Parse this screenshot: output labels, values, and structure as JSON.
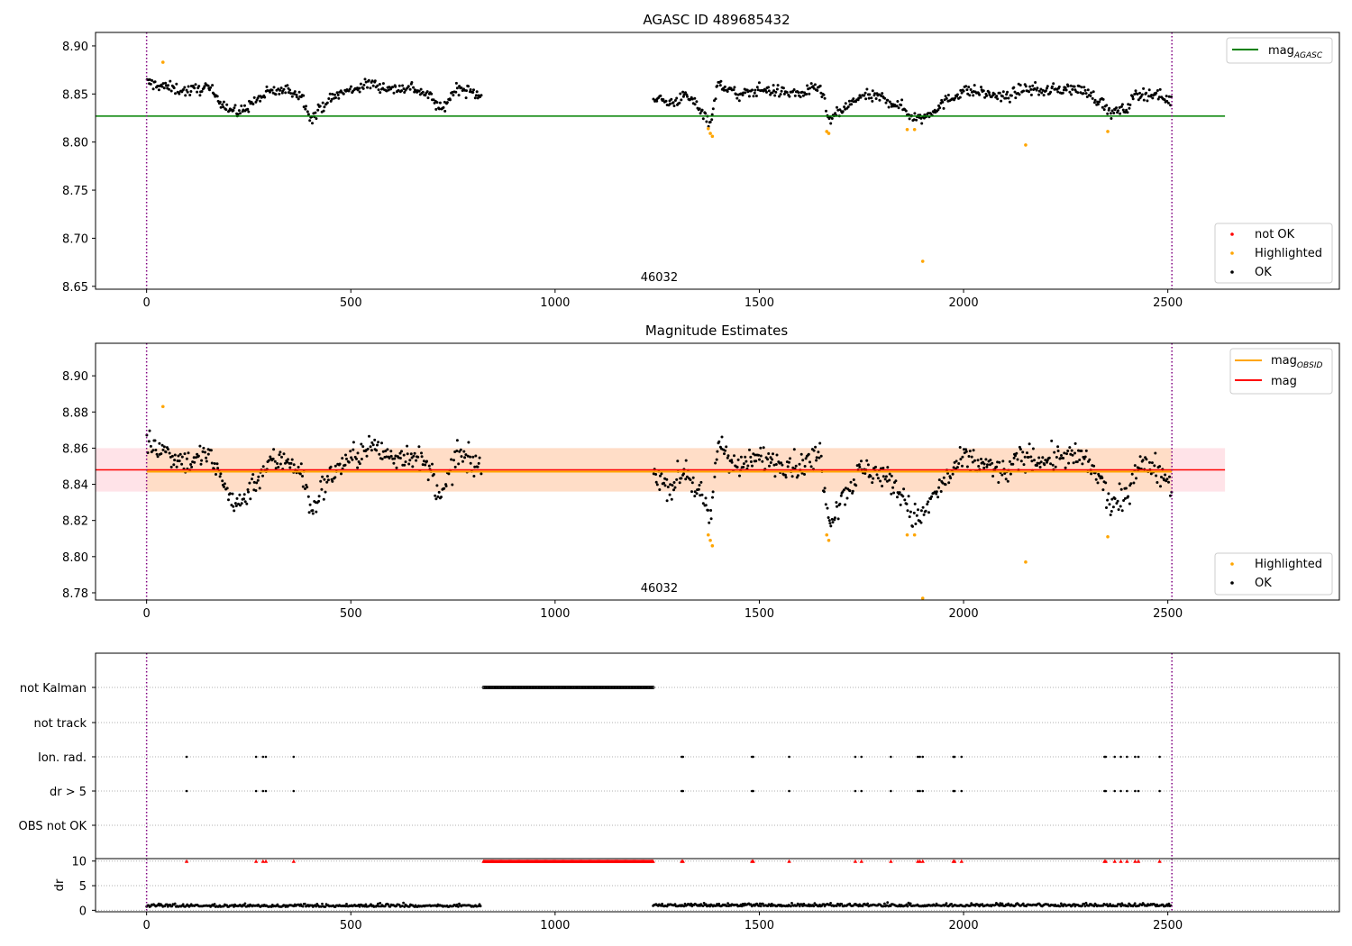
{
  "colors": {
    "ok": "#000000",
    "highlighted": "#ffa500",
    "not_ok": "#ff0000",
    "mag_agasc": "#008000",
    "mag_obsid": "#ffa500",
    "mag": "#ff0000",
    "obsid_vline": "#800080",
    "band_mag": "#ffc0cb",
    "band_obsid": "#ffdab9",
    "flag_grid": "#b0b0b0"
  },
  "chart_data": [
    {
      "type": "scatter",
      "title": "AGASC ID 489685432",
      "xlabel": "",
      "ylabel": "",
      "xlim": [
        -125,
        2920
      ],
      "ylim": [
        8.647,
        8.914
      ],
      "xticks": [
        0,
        500,
        1000,
        1500,
        2000,
        2500
      ],
      "yticks": [
        8.65,
        8.7,
        8.75,
        8.8,
        8.85,
        8.9
      ],
      "ytick_labels": [
        "8.65",
        "8.70",
        "8.75",
        "8.80",
        "8.85",
        "8.90"
      ],
      "mag_agasc": 8.827,
      "mag_agasc_xrange": [
        -125,
        2640
      ],
      "obsid_boundaries": [
        0,
        2510
      ],
      "obsid_labels": [
        {
          "x": 1255,
          "text": "46032"
        }
      ],
      "legend_lines": [
        {
          "name": "mag",
          "sub": "AGASC",
          "color": "#008000"
        }
      ],
      "legend_points": [
        {
          "name": "not OK",
          "color": "#ff0000"
        },
        {
          "name": "Highlighted",
          "color": "#ffa500"
        },
        {
          "name": "OK",
          "color": "#000000"
        }
      ],
      "highlighted_points": [
        [
          40,
          8.883
        ],
        [
          1375,
          8.814
        ],
        [
          1380,
          8.809
        ],
        [
          1385,
          8.806
        ],
        [
          1665,
          8.811
        ],
        [
          1670,
          8.809
        ],
        [
          1862,
          8.813
        ],
        [
          1880,
          8.813
        ],
        [
          1900,
          8.676
        ],
        [
          2152,
          8.797
        ],
        [
          2353,
          8.811
        ]
      ],
      "ok_segments": [
        {
          "x0": 0,
          "x1": 820,
          "y": [
            [
              0,
              8.862
            ],
            [
              50,
              8.857
            ],
            [
              100,
              8.853
            ],
            [
              150,
              8.857
            ],
            [
              200,
              8.835
            ],
            [
              225,
              8.83
            ],
            [
              250,
              8.838
            ],
            [
              300,
              8.852
            ],
            [
              350,
              8.854
            ],
            [
              380,
              8.848
            ],
            [
              405,
              8.824
            ],
            [
              430,
              8.838
            ],
            [
              470,
              8.85
            ],
            [
              550,
              8.861
            ],
            [
              600,
              8.855
            ],
            [
              650,
              8.857
            ],
            [
              700,
              8.846
            ],
            [
              720,
              8.832
            ],
            [
              760,
              8.857
            ],
            [
              820,
              8.848
            ]
          ],
          "noise": 0.0055,
          "count": 330
        },
        {
          "x0": 1240,
          "x1": 2510,
          "y": [
            [
              1240,
              8.848
            ],
            [
              1280,
              8.84
            ],
            [
              1320,
              8.848
            ],
            [
              1350,
              8.838
            ],
            [
              1380,
              8.82
            ],
            [
              1400,
              8.862
            ],
            [
              1450,
              8.848
            ],
            [
              1500,
              8.855
            ],
            [
              1600,
              8.85
            ],
            [
              1650,
              8.857
            ],
            [
              1670,
              8.822
            ],
            [
              1700,
              8.832
            ],
            [
              1750,
              8.848
            ],
            [
              1800,
              8.846
            ],
            [
              1850,
              8.836
            ],
            [
              1875,
              8.826
            ],
            [
              1900,
              8.825
            ],
            [
              1925,
              8.833
            ],
            [
              1960,
              8.843
            ],
            [
              2000,
              8.854
            ],
            [
              2050,
              8.851
            ],
            [
              2100,
              8.846
            ],
            [
              2150,
              8.856
            ],
            [
              2200,
              8.853
            ],
            [
              2250,
              8.856
            ],
            [
              2300,
              8.853
            ],
            [
              2340,
              8.84
            ],
            [
              2360,
              8.83
            ],
            [
              2400,
              8.834
            ],
            [
              2420,
              8.85
            ],
            [
              2470,
              8.85
            ],
            [
              2510,
              8.842
            ]
          ],
          "noise": 0.0055,
          "count": 520
        }
      ]
    },
    {
      "type": "scatter",
      "title": "Magnitude Estimates",
      "xlabel": "",
      "ylabel": "",
      "xlim": [
        -125,
        2920
      ],
      "ylim": [
        8.776,
        8.918
      ],
      "xticks": [
        0,
        500,
        1000,
        1500,
        2000,
        2500
      ],
      "yticks": [
        8.78,
        8.8,
        8.82,
        8.84,
        8.86,
        8.88,
        8.9
      ],
      "ytick_labels": [
        "8.78",
        "8.80",
        "8.82",
        "8.84",
        "8.86",
        "8.88",
        "8.90"
      ],
      "mag": 8.848,
      "mag_band": [
        8.836,
        8.86
      ],
      "mag_xrange": [
        -125,
        2640
      ],
      "mag_obsid": 8.847,
      "mag_obsid_band": [
        8.836,
        8.86
      ],
      "mag_obsid_xrange": [
        0,
        2510
      ],
      "obsid_boundaries": [
        0,
        2510
      ],
      "obsid_labels": [
        {
          "x": 1255,
          "text": "46032"
        }
      ],
      "legend_lines": [
        {
          "name": "mag",
          "sub": "OBSID",
          "color": "#ffa500"
        },
        {
          "name": "mag",
          "sub": "",
          "color": "#ff0000"
        }
      ],
      "legend_points": [
        {
          "name": "Highlighted",
          "color": "#ffa500"
        },
        {
          "name": "OK",
          "color": "#000000"
        }
      ],
      "highlighted_points": [
        [
          40,
          8.883
        ],
        [
          1375,
          8.812
        ],
        [
          1380,
          8.809
        ],
        [
          1385,
          8.806
        ],
        [
          1665,
          8.812
        ],
        [
          1670,
          8.809
        ],
        [
          1862,
          8.812
        ],
        [
          1880,
          8.812
        ],
        [
          1900,
          8.777
        ],
        [
          2152,
          8.797
        ],
        [
          2353,
          8.811
        ]
      ],
      "ok_segments": [
        {
          "x0": 0,
          "x1": 820,
          "y": [
            [
              0,
              8.864
            ],
            [
              50,
              8.858
            ],
            [
              100,
              8.852
            ],
            [
              150,
              8.857
            ],
            [
              200,
              8.835
            ],
            [
              225,
              8.828
            ],
            [
              250,
              8.837
            ],
            [
              300,
              8.852
            ],
            [
              350,
              8.854
            ],
            [
              380,
              8.846
            ],
            [
              405,
              8.824
            ],
            [
              430,
              8.838
            ],
            [
              470,
              8.85
            ],
            [
              550,
              8.861
            ],
            [
              600,
              8.855
            ],
            [
              650,
              8.857
            ],
            [
              700,
              8.846
            ],
            [
              720,
              8.83
            ],
            [
              760,
              8.857
            ],
            [
              820,
              8.848
            ]
          ],
          "noise": 0.0065,
          "count": 330
        },
        {
          "x0": 1240,
          "x1": 2510,
          "y": [
            [
              1240,
              8.848
            ],
            [
              1280,
              8.838
            ],
            [
              1320,
              8.848
            ],
            [
              1350,
              8.836
            ],
            [
              1380,
              8.82
            ],
            [
              1400,
              8.864
            ],
            [
              1450,
              8.848
            ],
            [
              1500,
              8.855
            ],
            [
              1600,
              8.85
            ],
            [
              1650,
              8.857
            ],
            [
              1670,
              8.82
            ],
            [
              1700,
              8.832
            ],
            [
              1750,
              8.848
            ],
            [
              1800,
              8.846
            ],
            [
              1850,
              8.834
            ],
            [
              1875,
              8.822
            ],
            [
              1900,
              8.822
            ],
            [
              1925,
              8.833
            ],
            [
              1960,
              8.843
            ],
            [
              2000,
              8.854
            ],
            [
              2050,
              8.851
            ],
            [
              2100,
              8.846
            ],
            [
              2150,
              8.856
            ],
            [
              2200,
              8.853
            ],
            [
              2250,
              8.856
            ],
            [
              2300,
              8.853
            ],
            [
              2340,
              8.84
            ],
            [
              2360,
              8.828
            ],
            [
              2400,
              8.832
            ],
            [
              2420,
              8.85
            ],
            [
              2470,
              8.85
            ],
            [
              2510,
              8.84
            ]
          ],
          "noise": 0.0065,
          "count": 520
        }
      ]
    },
    {
      "type": "scatter",
      "title": "",
      "xlabel": "",
      "ylabel": "",
      "xlim": [
        -125,
        2920
      ],
      "flag_labels": [
        "not Kalman",
        "not track",
        "Ion. rad.",
        "dr > 5",
        "OBS not OK"
      ],
      "flags": {
        "not Kalman": {
          "x0": 825,
          "x1": 1240,
          "count": 160
        },
        "not track": [],
        "Ion. rad.": [
          98,
          268,
          285,
          292,
          360,
          1310,
          1313,
          1482,
          1485,
          1573,
          1735,
          1750,
          1822,
          1888,
          1893,
          1900,
          1975,
          1978,
          1995,
          2345,
          2348,
          2370,
          2385,
          2400,
          2420,
          2428,
          2480
        ],
        "dr > 5": [
          98,
          268,
          285,
          292,
          360,
          1310,
          1313,
          1482,
          1485,
          1573,
          1735,
          1750,
          1822,
          1888,
          1893,
          1900,
          1975,
          1978,
          1995,
          2345,
          2348,
          2370,
          2385,
          2400,
          2420,
          2428,
          2480
        ],
        "OBS not OK": []
      },
      "obsid_boundaries": [
        0,
        2510
      ]
    },
    {
      "type": "scatter",
      "title": "",
      "xlabel": "",
      "ylabel": "dr",
      "xlim": [
        -125,
        2920
      ],
      "ylim": [
        -0.3,
        10.5
      ],
      "xticks": [
        0,
        500,
        1000,
        1500,
        2000,
        2500
      ],
      "yticks": [
        0,
        5,
        10
      ],
      "ytick_labels": [
        "0",
        "5",
        "10"
      ],
      "dr_clipped_value": 10,
      "dr_clipped_points": [
        98,
        268,
        285,
        292,
        360,
        1310,
        1313,
        1482,
        1485,
        1573,
        1735,
        1750,
        1822,
        1888,
        1893,
        1900,
        1975,
        1978,
        1995,
        2345,
        2348,
        2370,
        2385,
        2400,
        2420,
        2428,
        2480
      ],
      "dr_clipped_segment": {
        "x0": 825,
        "x1": 1240,
        "count": 170
      },
      "dr_segments": [
        {
          "x0": 0,
          "x1": 820,
          "base": 0.7,
          "noise": 0.5,
          "count": 330
        },
        {
          "x0": 1240,
          "x1": 2510,
          "base": 0.8,
          "noise": 0.5,
          "count": 520
        }
      ],
      "obsid_boundaries": [
        0,
        2510
      ]
    }
  ]
}
